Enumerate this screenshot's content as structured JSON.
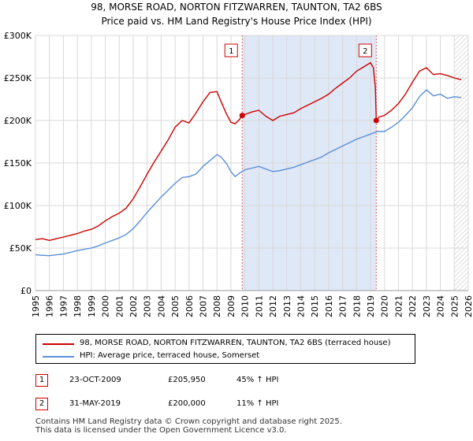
{
  "title_line1": "98, MORSE ROAD, NORTON FITZWARREN, TAUNTON, TA2 6BS",
  "title_line2": "Price paid vs. HM Land Registry's House Price Index (HPI)",
  "colors": {
    "property": "#cc0000",
    "hpi": "#5b8fd6",
    "shade": "#dfe8f6",
    "grid": "#d8d8d8",
    "vline": "#e06060"
  },
  "chart_data": {
    "type": "line",
    "xlim": [
      1995,
      2026
    ],
    "ylim": [
      0,
      300000
    ],
    "yticks": [
      0,
      50000,
      100000,
      150000,
      200000,
      250000,
      300000
    ],
    "ytick_labels": [
      "£0",
      "£50K",
      "£100K",
      "£150K",
      "£200K",
      "£250K",
      "£300K"
    ],
    "xticks": [
      1995,
      1996,
      1997,
      1998,
      1999,
      2000,
      2001,
      2002,
      2003,
      2004,
      2005,
      2006,
      2007,
      2008,
      2009,
      2010,
      2011,
      2012,
      2013,
      2014,
      2015,
      2016,
      2017,
      2018,
      2019,
      2020,
      2021,
      2022,
      2023,
      2024,
      2025,
      2026
    ],
    "shaded_span": [
      2009.81,
      2019.41
    ],
    "future_hatch_from": 2025.0,
    "series": [
      {
        "name": "98, MORSE ROAD, NORTON FITZWARREN, TAUNTON, TA2 6BS (terraced house)",
        "x": [
          1995.0,
          1995.5,
          1996.0,
          1996.5,
          1997.0,
          1997.5,
          1998.0,
          1998.5,
          1999.0,
          1999.5,
          2000.0,
          2000.5,
          2001.0,
          2001.5,
          2002.0,
          2002.5,
          2003.0,
          2003.5,
          2004.0,
          2004.5,
          2005.0,
          2005.5,
          2006.0,
          2006.5,
          2007.0,
          2007.5,
          2008.0,
          2008.3,
          2008.7,
          2009.0,
          2009.3,
          2009.6,
          2009.81,
          2010.0,
          2010.5,
          2011.0,
          2011.5,
          2012.0,
          2012.5,
          2013.0,
          2013.5,
          2014.0,
          2014.5,
          2015.0,
          2015.5,
          2016.0,
          2016.5,
          2017.0,
          2017.5,
          2018.0,
          2018.5,
          2019.0,
          2019.2,
          2019.35,
          2019.41,
          2019.6,
          2020.0,
          2020.5,
          2021.0,
          2021.5,
          2022.0,
          2022.5,
          2023.0,
          2023.5,
          2024.0,
          2024.5,
          2025.0,
          2025.5
        ],
        "y": [
          60000,
          61000,
          59000,
          61000,
          63000,
          65000,
          67000,
          70000,
          72000,
          76000,
          82000,
          87000,
          91000,
          97000,
          108000,
          122000,
          137000,
          151000,
          164000,
          177000,
          192000,
          200000,
          197000,
          209000,
          222000,
          233000,
          234000,
          222000,
          207000,
          198000,
          196000,
          201000,
          205950,
          207000,
          210000,
          212000,
          205000,
          200000,
          205000,
          207000,
          209000,
          214000,
          218000,
          222000,
          226000,
          231000,
          238000,
          244000,
          250000,
          258000,
          263000,
          268000,
          262000,
          238000,
          200000,
          204000,
          206000,
          212000,
          220000,
          231000,
          245000,
          258000,
          262000,
          254000,
          255000,
          253000,
          250000,
          248000
        ]
      },
      {
        "name": "HPI: Average price, terraced house, Somerset",
        "x": [
          1995.0,
          1995.5,
          1996.0,
          1996.5,
          1997.0,
          1997.5,
          1998.0,
          1998.5,
          1999.0,
          1999.5,
          2000.0,
          2000.5,
          2001.0,
          2001.5,
          2002.0,
          2002.5,
          2003.0,
          2003.5,
          2004.0,
          2004.5,
          2005.0,
          2005.5,
          2006.0,
          2006.5,
          2007.0,
          2007.5,
          2008.0,
          2008.3,
          2008.7,
          2009.0,
          2009.3,
          2009.6,
          2010.0,
          2010.5,
          2011.0,
          2011.5,
          2012.0,
          2012.5,
          2013.0,
          2013.5,
          2014.0,
          2014.5,
          2015.0,
          2015.5,
          2016.0,
          2016.5,
          2017.0,
          2017.5,
          2018.0,
          2018.5,
          2019.0,
          2019.5,
          2020.0,
          2020.5,
          2021.0,
          2021.5,
          2022.0,
          2022.5,
          2023.0,
          2023.5,
          2024.0,
          2024.5,
          2025.0,
          2025.5
        ],
        "y": [
          42000,
          41500,
          41000,
          42000,
          43000,
          45000,
          47000,
          48500,
          50000,
          52500,
          56000,
          59000,
          62000,
          66000,
          73000,
          82000,
          92000,
          101000,
          110000,
          118000,
          126000,
          133000,
          134000,
          137000,
          146000,
          153000,
          160000,
          157000,
          149000,
          140000,
          134000,
          138000,
          142000,
          144000,
          146000,
          143000,
          140000,
          141000,
          143000,
          145000,
          148000,
          151000,
          154000,
          157000,
          162000,
          166000,
          170000,
          174000,
          178000,
          181000,
          184000,
          187000,
          187000,
          192000,
          198000,
          206000,
          215000,
          228000,
          236000,
          229000,
          231000,
          226000,
          228000,
          227000
        ]
      }
    ],
    "annotations": [
      {
        "label": "1",
        "x": 2009.81,
        "y": 205950
      },
      {
        "label": "2",
        "x": 2019.41,
        "y": 200000
      }
    ]
  },
  "legend": [
    {
      "label": "98, MORSE ROAD, NORTON FITZWARREN, TAUNTON, TA2 6BS (terraced house)"
    },
    {
      "label": "HPI: Average price, terraced house, Somerset"
    }
  ],
  "sales": [
    {
      "num": "1",
      "date": "23-OCT-2009",
      "price": "£205,950",
      "hpi": "45% ↑ HPI"
    },
    {
      "num": "2",
      "date": "31-MAY-2019",
      "price": "£200,000",
      "hpi": "11% ↑ HPI"
    }
  ],
  "footer_line1": "Contains HM Land Registry data © Crown copyright and database right 2025.",
  "footer_line2": "This data is licensed under the Open Government Licence v3.0."
}
